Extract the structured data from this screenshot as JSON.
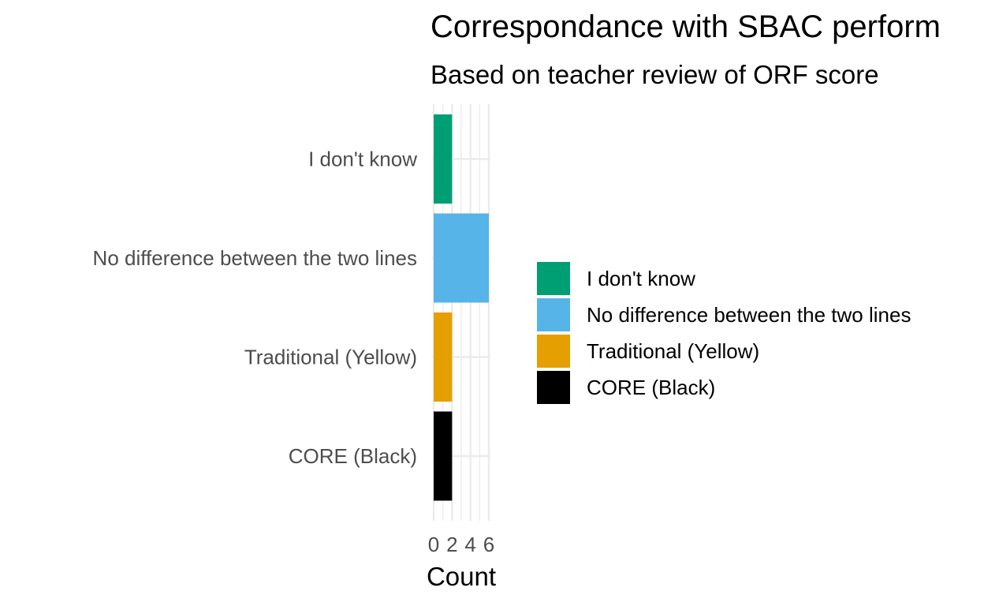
{
  "chart_data": {
    "type": "bar",
    "orientation": "horizontal",
    "title": "Correspondance with SBAC perform",
    "subtitle": "Based on teacher review of ORF score",
    "xlabel": "Count",
    "ylabel": "",
    "categories": [
      "I don't know",
      "No difference between the two lines",
      "Traditional (Yellow)",
      "CORE (Black)"
    ],
    "values": [
      2,
      6,
      2,
      2
    ],
    "colors": [
      "#009E73",
      "#56B4E9",
      "#E69F00",
      "#000000"
    ],
    "xlim": [
      0,
      6
    ],
    "x_ticks": [
      0,
      2,
      4,
      6
    ],
    "grid": true,
    "legend": {
      "position": "right",
      "entries": [
        "I don't know",
        "No difference between the two lines",
        "Traditional (Yellow)",
        "CORE (Black)"
      ]
    }
  }
}
